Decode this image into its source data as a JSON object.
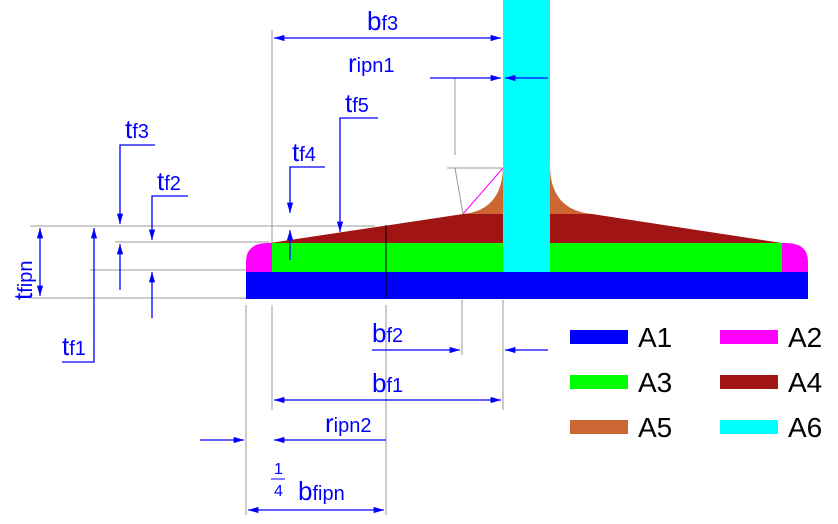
{
  "labels": {
    "bf3": {
      "main": "b",
      "sub": "f3"
    },
    "ripn1": {
      "main": "r",
      "sub": "ipn1"
    },
    "tf5": {
      "main": "t",
      "sub": "f5"
    },
    "tf4": {
      "main": "t",
      "sub": "f4"
    },
    "tf3": {
      "main": "t",
      "sub": "f3"
    },
    "tf2": {
      "main": "t",
      "sub": "f2"
    },
    "tfipn": {
      "main": "t",
      "sub": "fipn"
    },
    "tf1": {
      "main": "t",
      "sub": "f1"
    },
    "bf2": {
      "main": "b",
      "sub": "f2"
    },
    "bf1": {
      "main": "b",
      "sub": "f1"
    },
    "ripn2": {
      "main": "r",
      "sub": "ipn2"
    },
    "bfipn": {
      "num": "1",
      "den": "4",
      "main": "b",
      "sub": "fipn"
    }
  },
  "legend": [
    {
      "label": "A1",
      "color": "#0000ff"
    },
    {
      "label": "A2",
      "color": "#ff00ff"
    },
    {
      "label": "A3",
      "color": "#00ff00"
    },
    {
      "label": "A4",
      "color": "#a01414"
    },
    {
      "label": "A5",
      "color": "#cc6633"
    },
    {
      "label": "A6",
      "color": "#00ffff"
    }
  ]
}
